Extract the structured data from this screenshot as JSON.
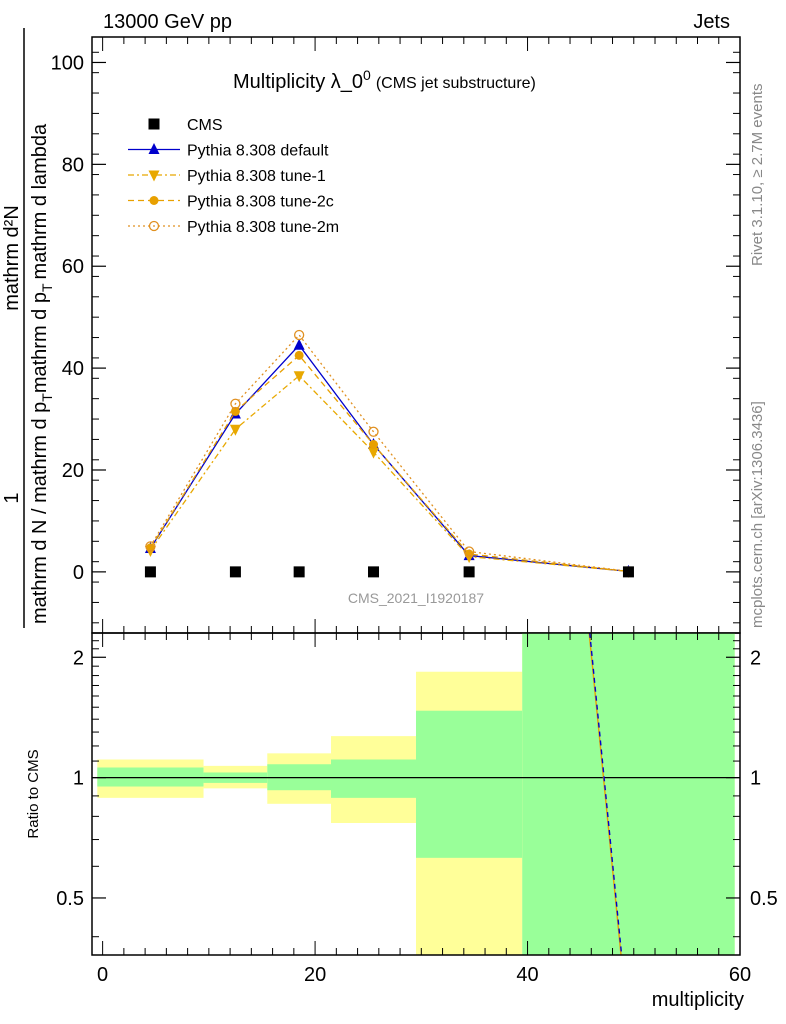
{
  "header": {
    "left": "13000 GeV pp",
    "right": "Jets"
  },
  "side_text": {
    "rivet": "Rivet 3.1.10, ≥ 2.7M events",
    "mcplots": "mcplots.cern.ch [arXiv:1306.3436]"
  },
  "watermark": "CMS_2021_I1920187",
  "title": {
    "main": "Multiplicity λ_0",
    "sup": "0",
    "sub": "(CMS jet substructure)"
  },
  "ylabel": {
    "one": "1",
    "numerator": "mathrm d²N",
    "denominator_a": "mathrm d N / mathrm d p",
    "denominator_a_sub": "T",
    "denominator_b": "mathrm d p",
    "denominator_b_sub": "T",
    "denominator_c": "mathrm d lambda"
  },
  "ratio_ylabel": "Ratio to CMS",
  "xlabel": "multiplicity",
  "legend": [
    {
      "label": "CMS",
      "color": "#000000",
      "marker": "square",
      "line": "none"
    },
    {
      "label": "Pythia 8.308 default",
      "color": "#0000cc",
      "marker": "triangle-up",
      "line": "solid"
    },
    {
      "label": "Pythia 8.308 tune-1",
      "color": "#e8a800",
      "marker": "triangle-down",
      "line": "dashdot"
    },
    {
      "label": "Pythia 8.308 tune-2c",
      "color": "#e8a000",
      "marker": "circle",
      "line": "dashed"
    },
    {
      "label": "Pythia 8.308 tune-2m",
      "color": "#e09020",
      "marker": "circle-open",
      "line": "dotted"
    }
  ],
  "chart_data": [
    {
      "type": "line",
      "panel": "main",
      "x_edges": [
        0,
        9.5,
        15.5,
        21.5,
        29.5,
        39.5,
        59.5
      ],
      "xlim": [
        -1,
        60
      ],
      "ylim": [
        -12,
        105
      ],
      "xticks": [
        0,
        20,
        40,
        60
      ],
      "yticks": [
        0,
        20,
        40,
        60,
        80,
        100
      ],
      "series": [
        {
          "name": "CMS",
          "x": [
            4.5,
            12.5,
            18.5,
            25.5,
            34.5,
            49.5
          ],
          "values": [
            0.0,
            0.0,
            0.0,
            0.0,
            0.0,
            0.0
          ]
        },
        {
          "name": "Pythia 8.308 default",
          "x": [
            4.5,
            12.5,
            18.5,
            25.5,
            34.5,
            49.5
          ],
          "values": [
            4.6,
            31.0,
            44.5,
            25.0,
            3.2,
            0.1
          ]
        },
        {
          "name": "Pythia 8.308 tune-1",
          "x": [
            4.5,
            12.5,
            18.5,
            25.5,
            34.5,
            49.5
          ],
          "values": [
            4.2,
            28.0,
            38.5,
            23.5,
            3.0,
            0.1
          ]
        },
        {
          "name": "Pythia 8.308 tune-2c",
          "x": [
            4.5,
            12.5,
            18.5,
            25.5,
            34.5,
            49.5
          ],
          "values": [
            4.7,
            31.5,
            42.5,
            25.0,
            3.5,
            0.1
          ]
        },
        {
          "name": "Pythia 8.308 tune-2m",
          "x": [
            4.5,
            12.5,
            18.5,
            25.5,
            34.5,
            49.5
          ],
          "values": [
            5.0,
            33.0,
            46.5,
            27.5,
            4.0,
            0.1
          ]
        }
      ]
    },
    {
      "type": "area",
      "panel": "ratio",
      "ylabel": "Ratio to CMS",
      "xlabel": "multiplicity",
      "log_y": true,
      "ylim": [
        0.36,
        2.3
      ],
      "xlim": [
        -1,
        60
      ],
      "yticks": [
        0.5,
        1,
        2
      ],
      "xticks": [
        0,
        20,
        40,
        60
      ],
      "bands": [
        {
          "x0": -0.5,
          "x1": 9.5,
          "green": [
            0.95,
            1.06
          ],
          "yellow": [
            0.89,
            1.11
          ]
        },
        {
          "x0": 9.5,
          "x1": 15.5,
          "green": [
            0.97,
            1.03
          ],
          "yellow": [
            0.94,
            1.07
          ]
        },
        {
          "x0": 15.5,
          "x1": 21.5,
          "green": [
            0.93,
            1.08
          ],
          "yellow": [
            0.86,
            1.15
          ]
        },
        {
          "x0": 21.5,
          "x1": 29.5,
          "green": [
            0.89,
            1.11
          ],
          "yellow": [
            0.77,
            1.27
          ]
        },
        {
          "x0": 29.5,
          "x1": 39.5,
          "green": [
            0.63,
            1.47
          ],
          "yellow": [
            0.3,
            1.84
          ]
        },
        {
          "x0": 39.5,
          "x1": 59.5,
          "green": [
            0.3,
            3.0
          ],
          "yellow": [
            0.3,
            3.0
          ]
        }
      ],
      "ratio_line": {
        "from": [
          45.8,
          2.3
        ],
        "to": [
          48.8,
          0.36
        ]
      },
      "reference": 1
    }
  ]
}
